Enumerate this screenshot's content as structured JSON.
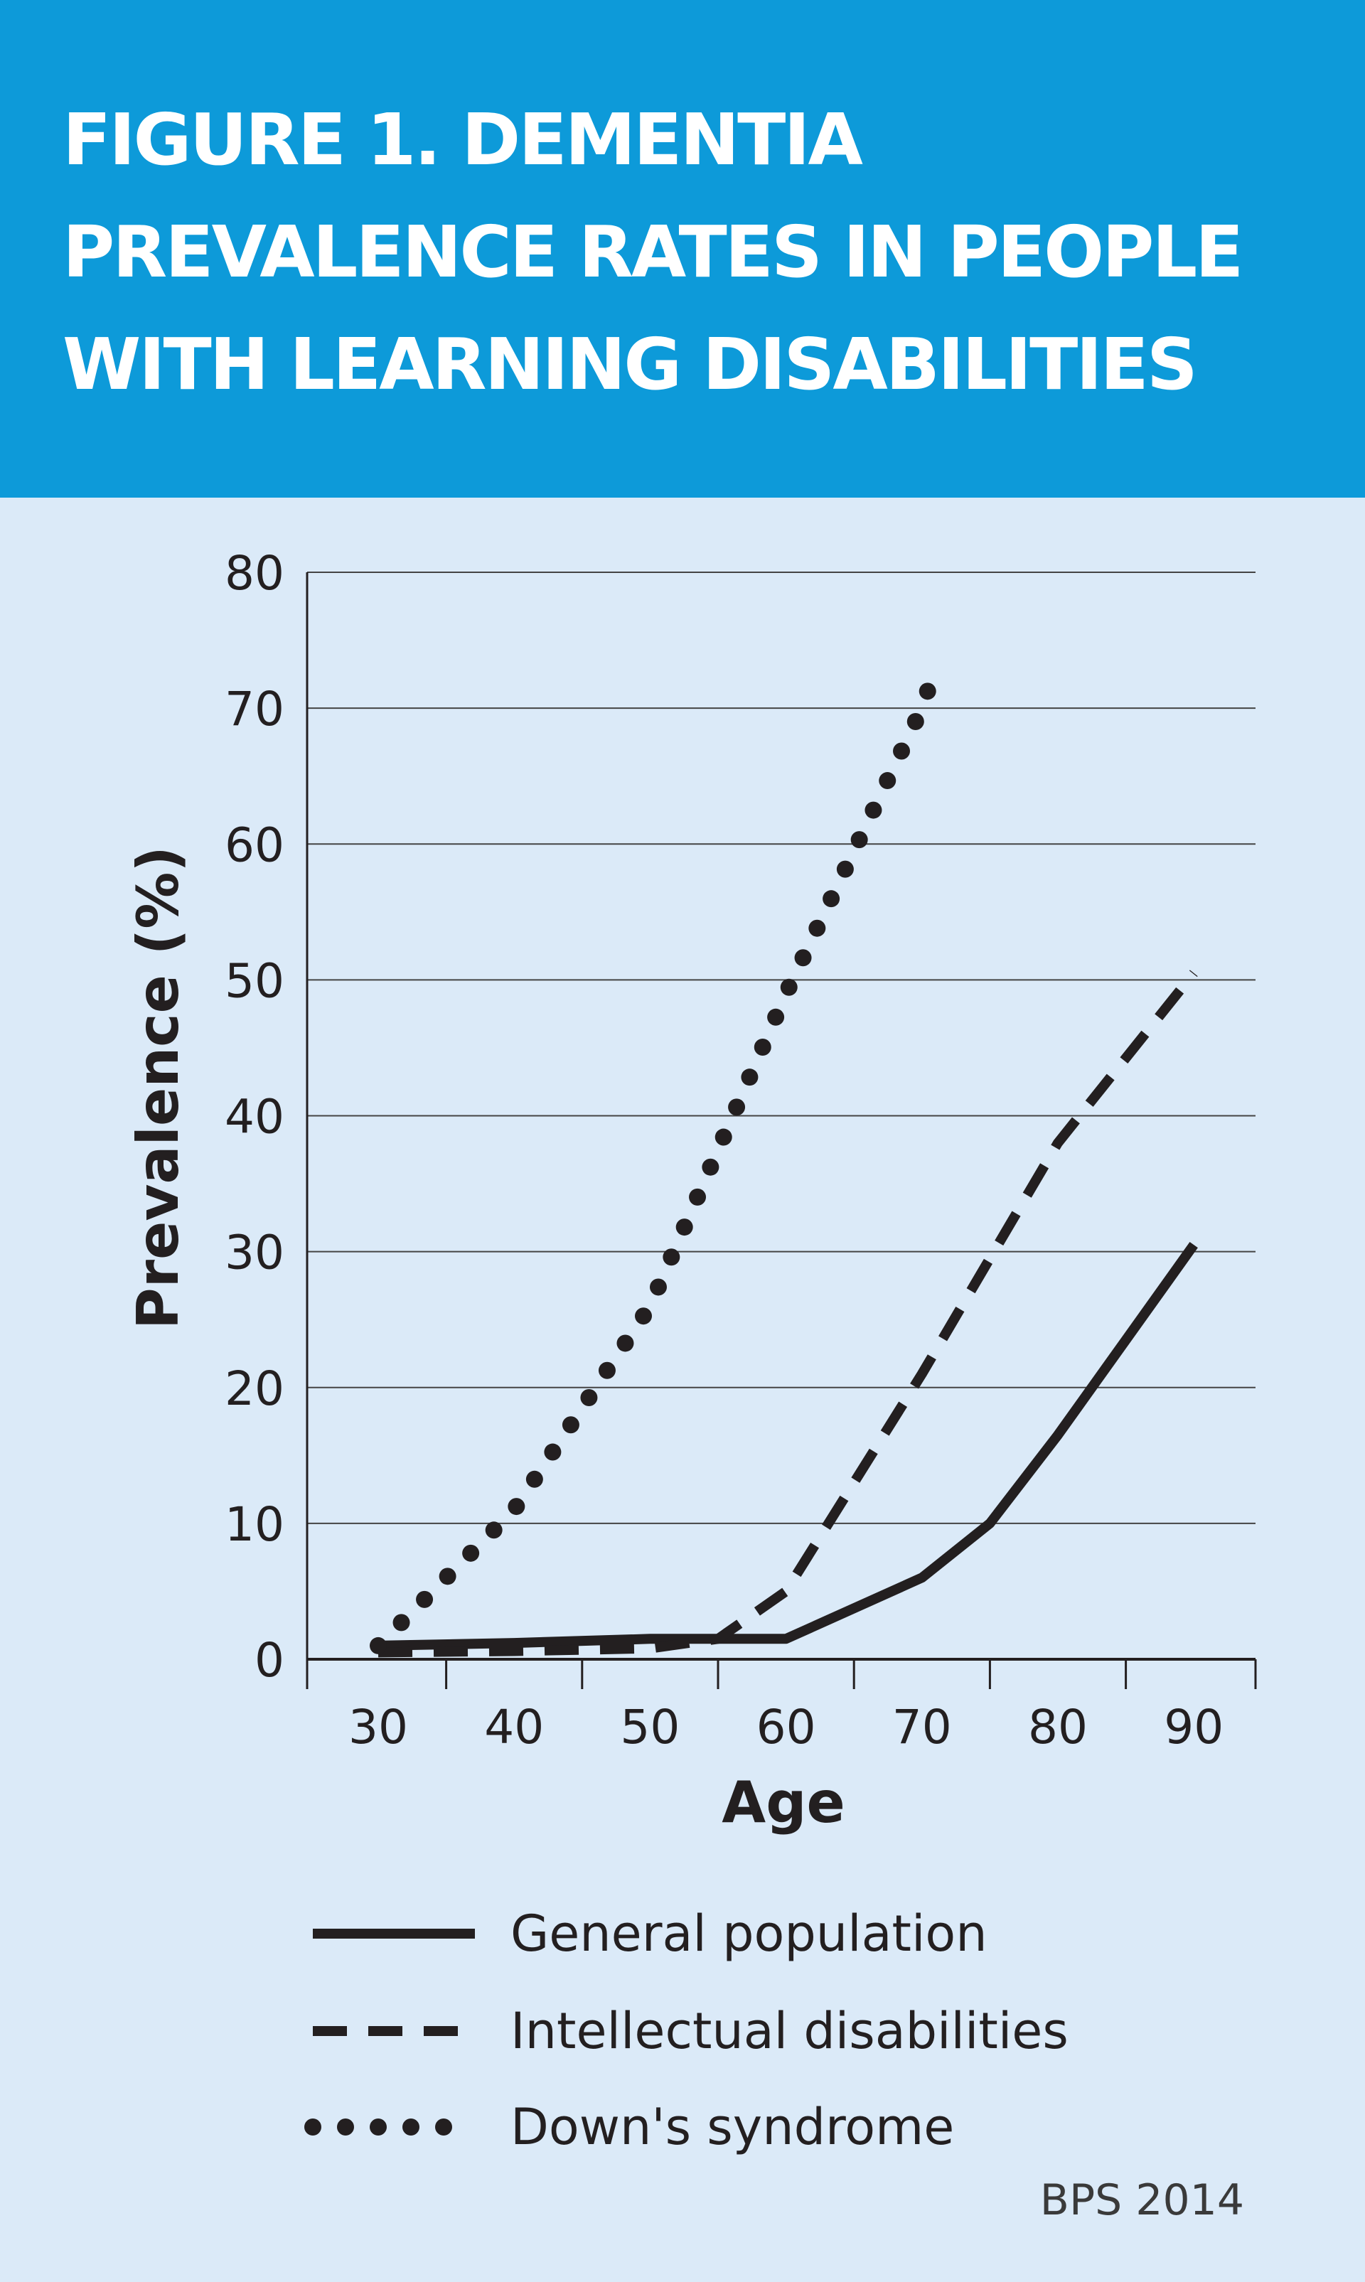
{
  "header": {
    "title": "FIGURE 1. DEMENTIA PREVALENCE RATES IN PEOPLE WITH LEARNING DISABILITIES"
  },
  "source": "BPS 2014",
  "colors": {
    "header_bg": "#0d9ad9",
    "panel_bg": "#dbeaf8",
    "line": "#231f20",
    "grid": "#444444"
  },
  "chart_data": {
    "type": "line",
    "title": "FIGURE 1. DEMENTIA PREVALENCE RATES IN PEOPLE WITH LEARNING DISABILITIES",
    "xlabel": "Age",
    "ylabel": "Prevalence (%)",
    "xlim": [
      25,
      95
    ],
    "ylim": [
      0,
      80
    ],
    "x_ticks": [
      30,
      40,
      50,
      60,
      70,
      80,
      90
    ],
    "y_ticks": [
      0,
      10,
      20,
      30,
      40,
      50,
      60,
      70,
      80
    ],
    "grid": "horizontal",
    "legend_position": "bottom",
    "series": [
      {
        "name": "General population",
        "style": "solid",
        "x": [
          30,
          40,
          50,
          60,
          70,
          75,
          80,
          85,
          90
        ],
        "y": [
          1,
          1.2,
          1.5,
          1.5,
          6,
          10,
          16.5,
          23.5,
          30.5
        ]
      },
      {
        "name": "Intellectual disabilities",
        "style": "dashed",
        "x": [
          30,
          40,
          50,
          55,
          60,
          70,
          80,
          90
        ],
        "y": [
          0.5,
          0.6,
          0.8,
          1.5,
          5,
          21,
          38,
          50.5
        ]
      },
      {
        "name": "Down's syndrome",
        "style": "dotted",
        "x": [
          30,
          40,
          50,
          60,
          70,
          71
        ],
        "y": [
          1,
          11,
          26,
          49,
          70,
          73
        ]
      }
    ]
  }
}
